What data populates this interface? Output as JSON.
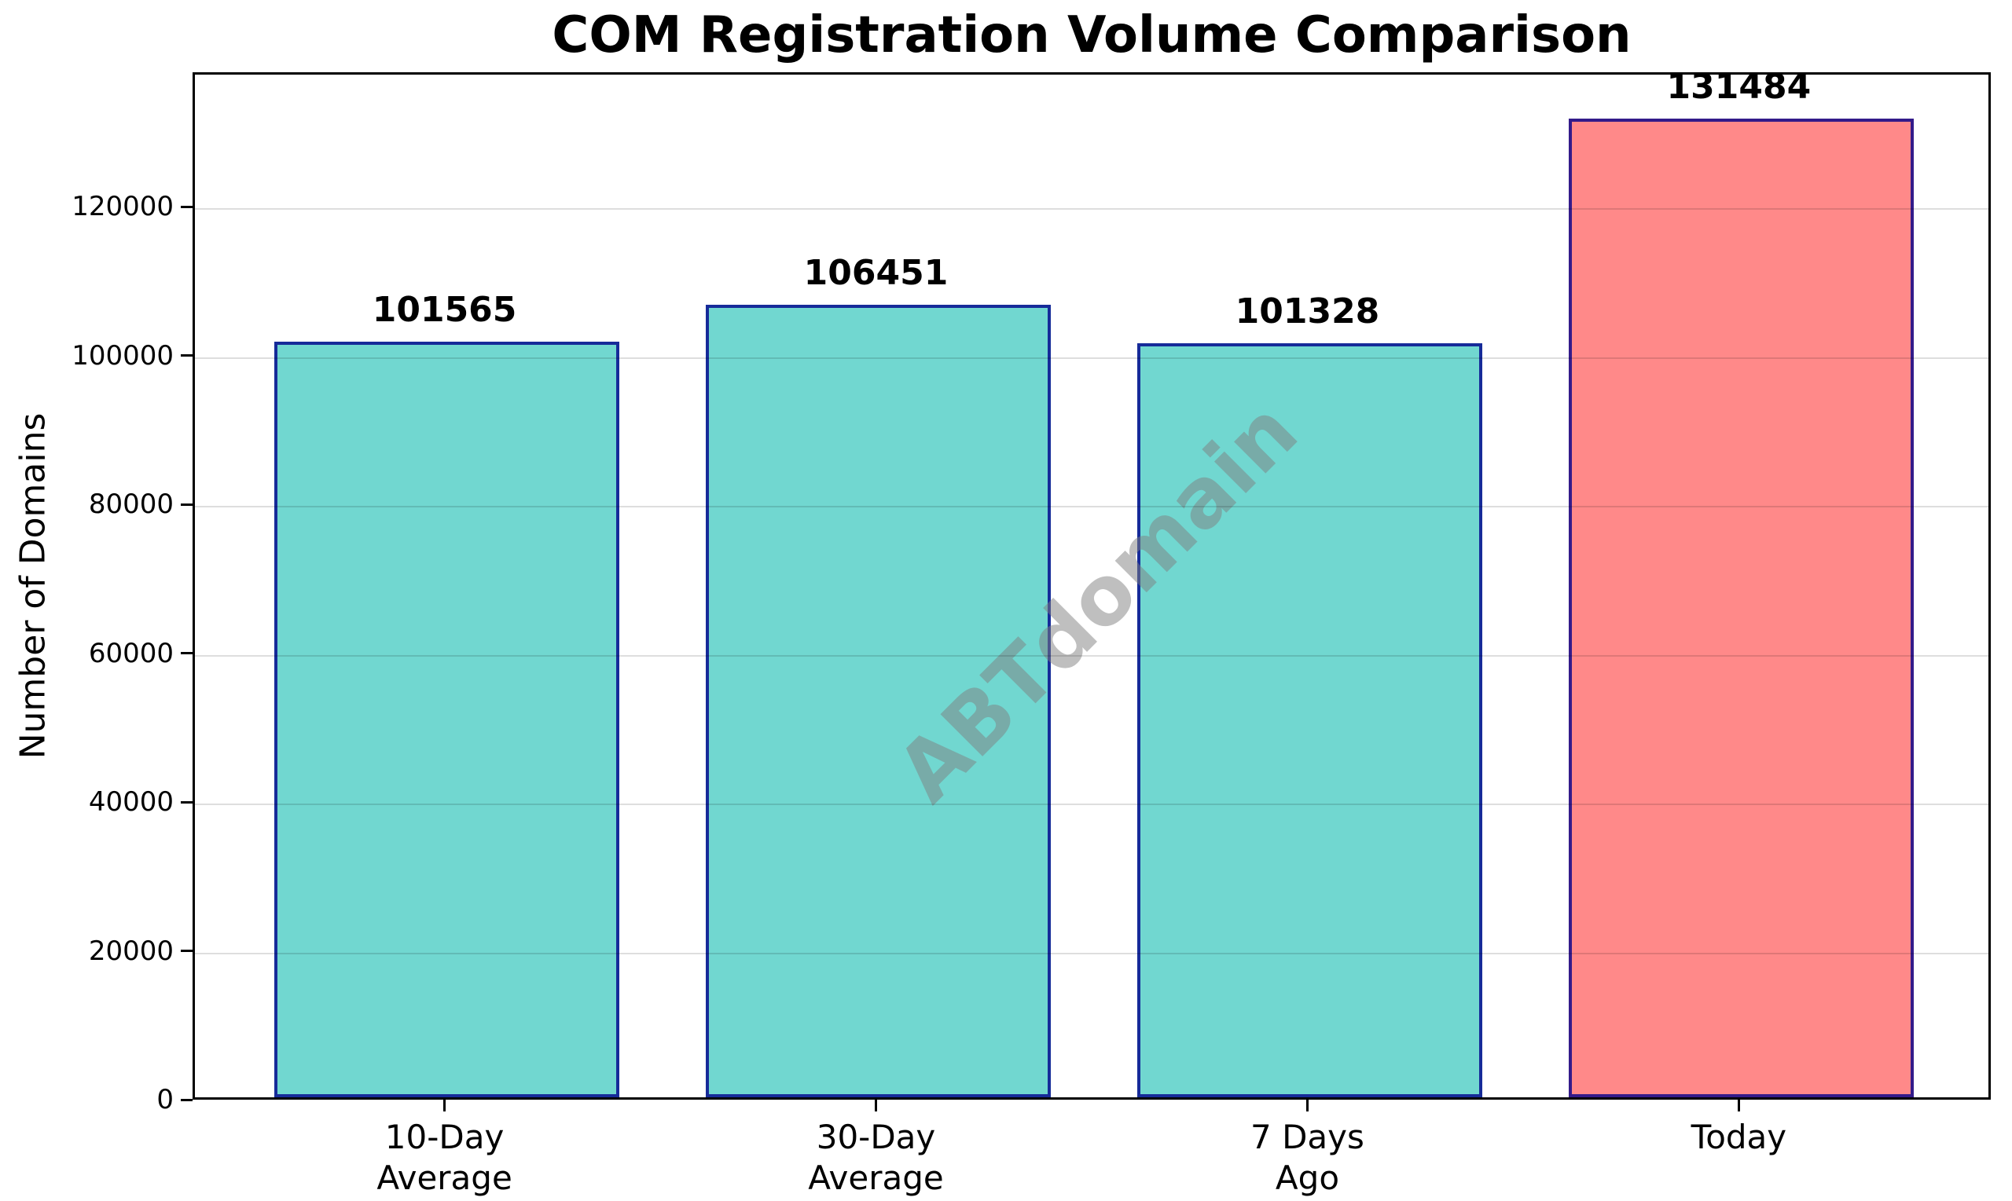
{
  "chart_data": {
    "type": "bar",
    "title": "COM Registration Volume Comparison",
    "categories": [
      "10-Day\nAverage",
      "30-Day\nAverage",
      "7 Days\nAgo",
      "Today"
    ],
    "values": [
      101565,
      106451,
      101328,
      131484
    ],
    "value_labels": [
      "101565",
      "106451",
      "101328",
      "131484"
    ],
    "xlabel": "",
    "ylabel": "Number of Domains",
    "ylim": [
      0,
      138058
    ],
    "yticks": [
      0,
      20000,
      40000,
      60000,
      80000,
      100000,
      120000
    ],
    "grid": true,
    "legend_position": "none",
    "bar_colors": [
      "#4ECDC4",
      "#4ECDC4",
      "#4ECDC4",
      "#FF6B6B"
    ],
    "bar_alpha": 0.8,
    "edge_color": "#00008B",
    "edge_alpha": 0.8,
    "edge_width": 4,
    "grid_color": "rgba(0,0,0,0.13)",
    "axis_color": "#000000",
    "watermark": {
      "text": "ABTdomain",
      "color": "#808080",
      "opacity": 0.5,
      "rotation_deg": -45
    }
  }
}
